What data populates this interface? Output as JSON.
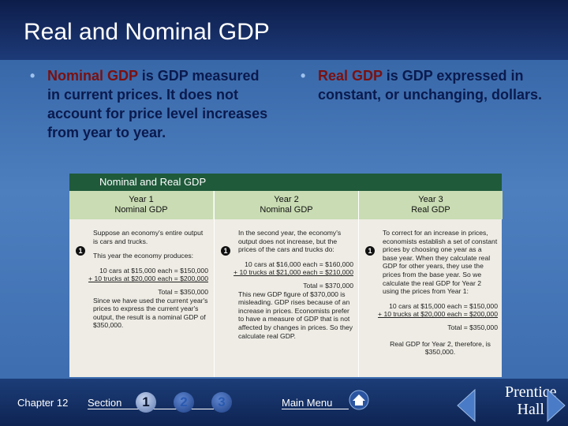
{
  "header": {
    "title": "Real and Nominal GDP"
  },
  "bullets": [
    {
      "term": "Nominal GDP",
      "text": "is GDP measured in current prices. It does not account for price level increases from year to year."
    },
    {
      "term": "Real GDP",
      "text": "is GDP expressed in constant, or unchanging, dollars."
    }
  ],
  "figure": {
    "title": "Nominal and Real GDP",
    "columns": [
      {
        "heading": [
          "Year 1",
          "Nominal GDP"
        ],
        "step": "1",
        "items": [
          {
            "kind": "p",
            "text": "Suppose an economy's entire output is cars and trucks."
          },
          {
            "kind": "p",
            "text": "This year the economy produces:"
          },
          {
            "kind": "calc",
            "text": "10 cars at $15,000 each = $150,000"
          },
          {
            "kind": "calc-under",
            "text": "+ 10 trucks at $20,000 each = $200,000"
          },
          {
            "kind": "calc",
            "text": "Total = $350,000"
          },
          {
            "kind": "p",
            "text": "Since we have used the current year's prices to express the current year's output, the result is a nominal GDP of $350,000."
          }
        ]
      },
      {
        "heading": [
          "Year 2",
          "Nominal GDP"
        ],
        "step": "1",
        "items": [
          {
            "kind": "p",
            "text": "In the second year, the economy's output does not increase, but the prices of the cars and trucks do:"
          },
          {
            "kind": "calc",
            "text": "10 cars at $16,000 each = $160,000"
          },
          {
            "kind": "calc-under",
            "text": "+ 10 trucks at $21,000 each = $210,000"
          },
          {
            "kind": "calc",
            "text": "Total = $370,000"
          },
          {
            "kind": "p",
            "text": "This new GDP figure of $370,000 is misleading. GDP rises because of an increase in prices. Economists prefer to have a measure of GDP that is not affected by changes in prices. So they calculate real GDP."
          }
        ]
      },
      {
        "heading": [
          "Year 3",
          "Real GDP"
        ],
        "step": "1",
        "items": [
          {
            "kind": "p",
            "text": "To correct for an increase in prices, economists establish a set of constant prices by choosing one year as a base year. When they calculate real GDP for other years, they use the prices from the base year. So we calculate the real GDP for Year 2 using the prices from Year 1:"
          },
          {
            "kind": "calc",
            "text": "10 cars at $15,000 each = $150,000"
          },
          {
            "kind": "calc-under",
            "text": "+ 10 trucks at $20,000 each = $200,000"
          },
          {
            "kind": "calc",
            "text": "Total = $350,000"
          },
          {
            "kind": "p-center",
            "text": "Real GDP for Year 2, therefore, is $350,000."
          }
        ]
      }
    ]
  },
  "footer": {
    "chapter": "Chapter 12",
    "section": "Section",
    "section_numbers": [
      "1",
      "2",
      "3"
    ],
    "menu": "Main Menu",
    "logo": [
      "Prentice",
      "Hall"
    ]
  }
}
